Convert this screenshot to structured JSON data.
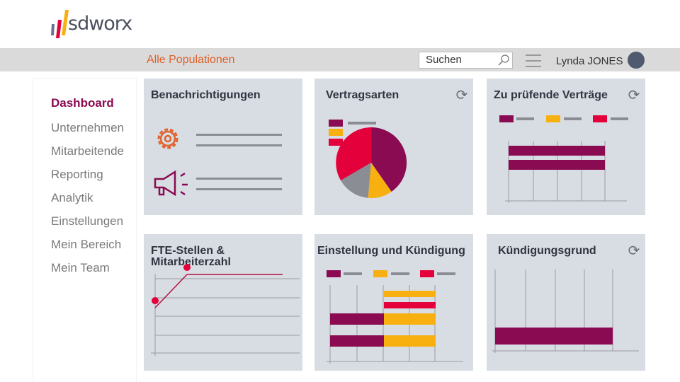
{
  "brand": {
    "name": "sdworx"
  },
  "topbar": {
    "population": "Alle Populationen",
    "search_placeholder": "Suchen",
    "user_name": "Lynda JONES"
  },
  "sidebar": {
    "items": [
      {
        "label": "Dashboard",
        "active": true
      },
      {
        "label": "Unternehmen"
      },
      {
        "label": "Mitarbeitende"
      },
      {
        "label": "Reporting"
      },
      {
        "label": "Analytik"
      },
      {
        "label": "Einstellungen"
      },
      {
        "label": "Mein Bereich"
      },
      {
        "label": "Mein Team"
      }
    ]
  },
  "cards": [
    {
      "title": "Benachrichtigungen"
    },
    {
      "title": "Vertragsarten",
      "refresh": true
    },
    {
      "title": "Zu prüfende Verträge",
      "refresh": true
    },
    {
      "title": "FTE-Stellen & Mitarbeiterzahl"
    },
    {
      "title": "Einstellung und Kündigung"
    },
    {
      "title": "Kündigungsgrund",
      "refresh": true
    }
  ],
  "colors": {
    "maroon": "#8a0b52",
    "yellow": "#f7b00f",
    "red": "#e4003b",
    "gray": "#8a8d93",
    "accent": "#e0612a"
  },
  "icons": {
    "refresh": "⟳"
  }
}
